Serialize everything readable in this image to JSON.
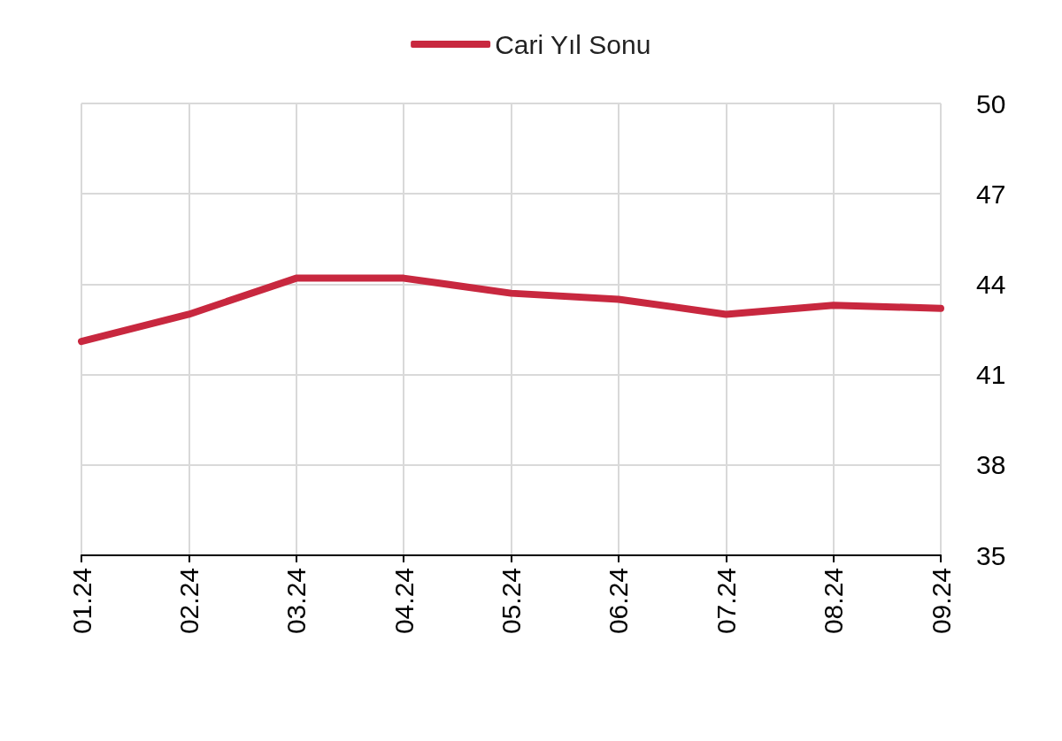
{
  "chart_data": {
    "type": "line",
    "categories": [
      "01.24",
      "02.24",
      "03.24",
      "04.24",
      "05.24",
      "06.24",
      "07.24",
      "08.24",
      "09.24"
    ],
    "series": [
      {
        "name": "Cari Yıl Sonu",
        "color": "#c8283f",
        "values": [
          42.1,
          43.0,
          44.2,
          44.2,
          43.7,
          43.5,
          43.0,
          43.3,
          43.2
        ]
      }
    ],
    "ylim": [
      35,
      50
    ],
    "yticks": [
      35,
      38,
      41,
      44,
      47,
      50
    ],
    "grid": true,
    "legend": "top",
    "line_style": "solid"
  }
}
